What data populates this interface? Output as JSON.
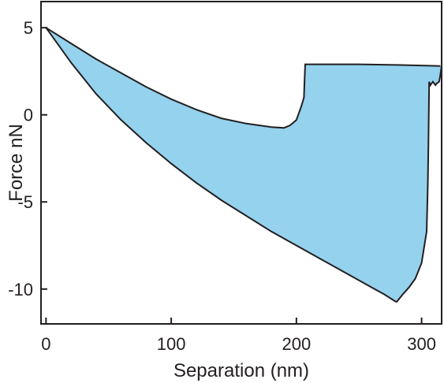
{
  "chart_data": {
    "type": "area",
    "title": "",
    "xlabel": "Separation (nm)",
    "ylabel": "Force nN",
    "xlim": [
      -4,
      316
    ],
    "ylim": [
      -12,
      6.5
    ],
    "xticks": [
      0,
      100,
      200,
      300
    ],
    "yticks": [
      -10,
      -5,
      0,
      5
    ],
    "grid": false,
    "fill_color": "#94d2ee",
    "line_color": "#231f20",
    "upper_curve": {
      "x": [
        0,
        20,
        40,
        60,
        80,
        100,
        120,
        140,
        160,
        180,
        190,
        195,
        200,
        204,
        206,
        206.5,
        207,
        250,
        290,
        315
      ],
      "y": [
        5,
        4.1,
        3.2,
        2.4,
        1.6,
        0.9,
        0.3,
        -0.2,
        -0.5,
        -0.7,
        -0.75,
        -0.6,
        -0.3,
        0.5,
        1.0,
        2.0,
        2.9,
        2.9,
        2.85,
        2.8
      ]
    },
    "lower_curve": {
      "x": [
        0,
        20,
        40,
        60,
        80,
        100,
        120,
        140,
        160,
        180,
        200,
        220,
        240,
        260,
        270,
        280
      ],
      "y": [
        5,
        3.0,
        1.2,
        -0.3,
        -1.6,
        -2.8,
        -3.9,
        -4.9,
        -5.8,
        -6.7,
        -7.5,
        -8.3,
        -9.1,
        -9.9,
        -10.3,
        -10.75
      ]
    },
    "return_curve": {
      "x": [
        280,
        285,
        290,
        295,
        300,
        302,
        304,
        305,
        305.5,
        306,
        306,
        307,
        309,
        311,
        312,
        314,
        315,
        316
      ],
      "y": [
        -10.75,
        -10.3,
        -9.9,
        -9.4,
        -8.5,
        -7.6,
        -6.7,
        -4.0,
        -1.5,
        1.5,
        1.9,
        1.7,
        1.9,
        1.7,
        1.8,
        1.9,
        2.3,
        2.8
      ]
    }
  }
}
